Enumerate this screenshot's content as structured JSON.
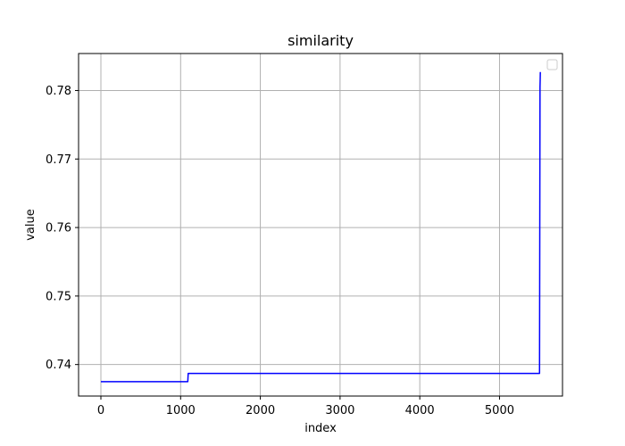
{
  "chart_data": {
    "type": "line",
    "title": "similarity",
    "xlabel": "index",
    "ylabel": "value",
    "xlim": [
      -280,
      5790
    ],
    "ylim": [
      0.7354,
      0.7854
    ],
    "xticks": [
      0,
      1000,
      2000,
      3000,
      4000,
      5000
    ],
    "yticks": [
      0.74,
      0.75,
      0.76,
      0.77,
      0.78
    ],
    "ytick_labels": [
      "0.74",
      "0.75",
      "0.76",
      "0.77",
      "0.78"
    ],
    "grid": true,
    "legend": {
      "placement": "top-right",
      "entries": []
    },
    "series": [
      {
        "color": "#0000ff",
        "points": [
          [
            0,
            0.7375
          ],
          [
            1090,
            0.7375
          ],
          [
            1095,
            0.7387
          ],
          [
            5502,
            0.7387
          ],
          [
            5508,
            0.7805
          ],
          [
            5510,
            0.7815
          ],
          [
            5512,
            0.7827
          ]
        ]
      }
    ]
  }
}
